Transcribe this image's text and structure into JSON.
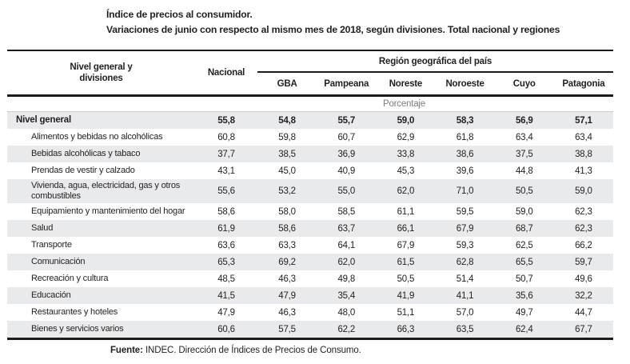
{
  "title": "Índice de precios al consumidor.",
  "subtitle": "Variaciones de junio con respecto al mismo mes de 2018, según divisiones. Total nacional y regiones",
  "table": {
    "col1_header_line1": "Nivel general y",
    "col1_header_line2": "divisiones",
    "nacional_header": "Nacional",
    "region_group_header": "Región geográfica del país",
    "region_columns": [
      "GBA",
      "Pampeana",
      "Noreste",
      "Noroeste",
      "Cuyo",
      "Patagonia"
    ],
    "unit_label": "Porcentaje",
    "rows": [
      {
        "label": "Nivel general",
        "is_total": true,
        "values": [
          "55,8",
          "54,8",
          "55,7",
          "59,0",
          "58,3",
          "56,9",
          "57,1"
        ]
      },
      {
        "label": "Alimentos y bebidas no alcohólicas",
        "is_total": false,
        "values": [
          "60,8",
          "59,8",
          "60,7",
          "62,9",
          "61,8",
          "63,4",
          "63,4"
        ]
      },
      {
        "label": "Bebidas alcohólicas y tabaco",
        "is_total": false,
        "values": [
          "37,7",
          "38,5",
          "36,9",
          "33,8",
          "38,6",
          "37,5",
          "38,8"
        ]
      },
      {
        "label": "Prendas de vestir y calzado",
        "is_total": false,
        "values": [
          "43,1",
          "45,0",
          "40,9",
          "45,3",
          "39,6",
          "44,8",
          "41,3"
        ]
      },
      {
        "label": "Vivienda, agua, electricidad, gas y otros combustibles",
        "is_total": false,
        "values": [
          "55,6",
          "53,2",
          "55,0",
          "62,0",
          "71,0",
          "50,5",
          "59,0"
        ]
      },
      {
        "label": "Equipamiento y mantenimiento del hogar",
        "is_total": false,
        "values": [
          "58,6",
          "58,0",
          "58,5",
          "61,1",
          "59,5",
          "59,0",
          "62,3"
        ]
      },
      {
        "label": "Salud",
        "is_total": false,
        "values": [
          "61,9",
          "58,6",
          "63,7",
          "66,1",
          "67,9",
          "68,7",
          "62,3"
        ]
      },
      {
        "label": "Transporte",
        "is_total": false,
        "values": [
          "63,6",
          "63,3",
          "64,1",
          "67,9",
          "59,3",
          "62,5",
          "66,2"
        ]
      },
      {
        "label": "Comunicación",
        "is_total": false,
        "values": [
          "65,3",
          "69,2",
          "62,0",
          "61,5",
          "62,8",
          "65,5",
          "59,7"
        ]
      },
      {
        "label": "Recreación y cultura",
        "is_total": false,
        "values": [
          "48,5",
          "46,3",
          "49,8",
          "50,5",
          "51,4",
          "50,7",
          "49,6"
        ]
      },
      {
        "label": "Educación",
        "is_total": false,
        "values": [
          "41,5",
          "47,9",
          "35,4",
          "41,9",
          "41,1",
          "35,6",
          "32,2"
        ]
      },
      {
        "label": "Restaurantes y hoteles",
        "is_total": false,
        "values": [
          "47,9",
          "46,3",
          "48,0",
          "51,1",
          "57,0",
          "49,7",
          "44,7"
        ]
      },
      {
        "label": "Bienes y servicios varios",
        "is_total": false,
        "values": [
          "60,6",
          "57,5",
          "62,2",
          "66,3",
          "63,5",
          "62,4",
          "67,7"
        ]
      }
    ]
  },
  "footer": {
    "source_label": "Fuente:",
    "source_text": "INDEC. Dirección de Índices de Precios de Consumo."
  },
  "colors": {
    "stripe": "#e9eaec",
    "text": "#231f20",
    "unit_text": "#7c7d80",
    "rule": "#1c1c1e"
  }
}
